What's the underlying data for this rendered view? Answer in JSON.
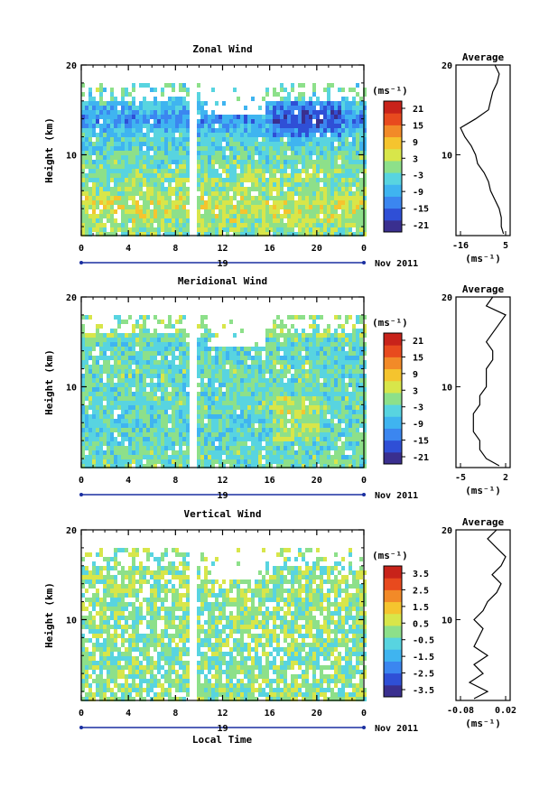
{
  "figure": {
    "date_label": "Nov 2011",
    "day_label": "19",
    "xlabel": "Local Time",
    "x_ticks": [
      "0",
      "4",
      "8",
      "12",
      "16",
      "20",
      "0"
    ]
  },
  "panels": [
    {
      "title": "Zonal Wind",
      "ylabel": "Height (km)",
      "y_ticks": [
        "20",
        "10"
      ],
      "unit": "(ms⁻¹)",
      "colorbar_ticks": [
        "21",
        "15",
        "9",
        "3",
        "-3",
        "-9",
        "-15",
        "-21"
      ],
      "avg_title": "Average",
      "avg_y_ticks": [
        "20",
        "10"
      ],
      "avg_x_ticks": [
        "-16",
        "5"
      ],
      "avg_unit": "(ms⁻¹)"
    },
    {
      "title": "Meridional Wind",
      "ylabel": "Height (km)",
      "y_ticks": [
        "20",
        "10"
      ],
      "unit": "(ms⁻¹)",
      "colorbar_ticks": [
        "21",
        "15",
        "9",
        "3",
        "-3",
        "-9",
        "-15",
        "-21"
      ],
      "avg_title": "Average",
      "avg_y_ticks": [
        "20",
        "10"
      ],
      "avg_x_ticks": [
        "-5",
        "2"
      ],
      "avg_unit": "(ms⁻¹)"
    },
    {
      "title": "Vertical Wind",
      "ylabel": "Height (km)",
      "y_ticks": [
        "20",
        "10"
      ],
      "unit": "(ms⁻¹)",
      "colorbar_ticks": [
        "3.5",
        "2.5",
        "1.5",
        "0.5",
        "-0.5",
        "-1.5",
        "-2.5",
        "-3.5"
      ],
      "avg_title": "Average",
      "avg_y_ticks": [
        "20",
        "10"
      ],
      "avg_x_ticks": [
        "-0.08",
        "0.02"
      ],
      "avg_unit": "(ms⁻¹)"
    }
  ],
  "colors": {
    "palette": [
      "#3a2f8f",
      "#2f4fd6",
      "#3b86f0",
      "#3fb4f0",
      "#58d4e0",
      "#8de08a",
      "#d8e64a",
      "#f5c42e",
      "#f28a28",
      "#e84a1e",
      "#c8231a"
    ]
  },
  "chart_data": [
    {
      "type": "heatmap",
      "title": "Zonal Wind",
      "ylabel": "Height (km)",
      "xlabel": "Local Time",
      "x_range": [
        0,
        24
      ],
      "y_range": [
        1,
        20
      ],
      "color_range": [
        -24,
        24
      ],
      "profile": [
        {
          "h": 1.5,
          "v": 0
        },
        {
          "h": 4,
          "v": 4
        },
        {
          "h": 6,
          "v": 1
        },
        {
          "h": 8,
          "v": -1
        },
        {
          "h": 10,
          "v": -3
        },
        {
          "h": 12,
          "v": -6
        },
        {
          "h": 14,
          "v": -12
        },
        {
          "h": 16,
          "v": -5
        },
        {
          "h": 17,
          "v": -2
        },
        {
          "h": 18,
          "v": -3
        },
        {
          "h": 19,
          "v": -4
        }
      ],
      "average": {
        "x_range": [
          -16,
          5
        ],
        "h": [
          1.2,
          2,
          3,
          4,
          5,
          6,
          7,
          8,
          9,
          10,
          11,
          12,
          13,
          14,
          15,
          16,
          17,
          18,
          19,
          20
        ],
        "v": [
          4,
          3,
          3,
          2,
          0,
          -2,
          -3,
          -5,
          -8,
          -9,
          -11,
          -14,
          -16,
          -9,
          -3,
          -2,
          -1,
          1,
          2,
          0
        ]
      }
    },
    {
      "type": "heatmap",
      "title": "Meridional Wind",
      "ylabel": "Height (km)",
      "xlabel": "Local Time",
      "x_range": [
        0,
        24
      ],
      "y_range": [
        1,
        20
      ],
      "color_range": [
        -24,
        24
      ],
      "profile": [
        {
          "h": 1.5,
          "v": -2
        },
        {
          "h": 4,
          "v": -3
        },
        {
          "h": 6,
          "v": -4
        },
        {
          "h": 8,
          "v": -2
        },
        {
          "h": 10,
          "v": -3
        },
        {
          "h": 12,
          "v": -2
        },
        {
          "h": 14,
          "v": -4
        },
        {
          "h": 16,
          "v": -1
        },
        {
          "h": 17,
          "v": 1
        },
        {
          "h": 18,
          "v": -1
        },
        {
          "h": 19,
          "v": 2
        }
      ],
      "average": {
        "x_range": [
          -5,
          2
        ],
        "h": [
          1.2,
          2,
          3,
          4,
          5,
          6,
          7,
          8,
          9,
          10,
          11,
          12,
          13,
          14,
          15,
          16,
          17,
          18,
          19,
          20
        ],
        "v": [
          1,
          -1,
          -2,
          -2,
          -3,
          -3,
          -3,
          -2,
          -2,
          -1,
          -1,
          -1,
          0,
          0,
          -1,
          0,
          1,
          2,
          -1,
          0
        ]
      }
    },
    {
      "type": "heatmap",
      "title": "Vertical Wind",
      "ylabel": "Height (km)",
      "xlabel": "Local Time",
      "x_range": [
        0,
        24
      ],
      "y_range": [
        1,
        20
      ],
      "color_range": [
        -4,
        4
      ],
      "profile": [
        {
          "h": 1.5,
          "v": 0
        },
        {
          "h": 4,
          "v": 0
        },
        {
          "h": 6,
          "v": -0.2
        },
        {
          "h": 8,
          "v": 0.1
        },
        {
          "h": 10,
          "v": -0.1
        },
        {
          "h": 12,
          "v": 0
        },
        {
          "h": 14,
          "v": 0.2
        },
        {
          "h": 16,
          "v": -0.1
        },
        {
          "h": 17,
          "v": 0
        },
        {
          "h": 18,
          "v": 0.1
        },
        {
          "h": 19,
          "v": 0
        }
      ],
      "average": {
        "x_range": [
          -0.08,
          0.02
        ],
        "h": [
          1.2,
          2,
          3,
          4,
          5,
          6,
          7,
          8,
          9,
          10,
          11,
          12,
          13,
          14,
          15,
          16,
          17,
          18,
          19,
          20
        ],
        "v": [
          -0.05,
          -0.02,
          -0.06,
          -0.03,
          -0.05,
          -0.02,
          -0.05,
          -0.04,
          -0.03,
          -0.05,
          -0.03,
          -0.02,
          0.0,
          0.01,
          -0.01,
          0.01,
          0.02,
          0.0,
          -0.02,
          0.0
        ]
      }
    }
  ]
}
